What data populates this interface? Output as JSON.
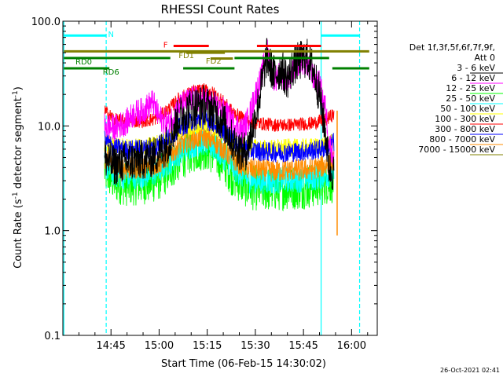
{
  "chart_data": {
    "type": "line",
    "title": "RHESSI Count Rates",
    "xlabel": "Start Time (06-Feb-15 14:30:02)",
    "ylabel_main": "Count Rate (s",
    "ylabel_sup1": "-1",
    "ylabel_mid": " detector segment",
    "ylabel_sup2": "-1",
    "ylabel_end": ")",
    "x_unit": "minutes since 14:30:02",
    "xlim": [
      0,
      98
    ],
    "ylim": [
      0.1,
      100
    ],
    "yscale": "log",
    "y_ticks": [
      {
        "value": 0.1,
        "label": "0.1"
      },
      {
        "value": 1.0,
        "label": "1.0"
      },
      {
        "value": 10.0,
        "label": "10.0"
      },
      {
        "value": 100.0,
        "label": "100.0"
      }
    ],
    "x_ticks": [
      {
        "value": 15,
        "label": "14:45"
      },
      {
        "value": 30,
        "label": "15:00"
      },
      {
        "value": 45,
        "label": "15:15"
      },
      {
        "value": 60,
        "label": "15:30"
      },
      {
        "value": 75,
        "label": "15:45"
      },
      {
        "value": 90,
        "label": "16:00"
      }
    ],
    "legend_header_1": "Det 1f,3f,5f,6f,7f,9f,",
    "legend_header_2": "Att 0",
    "series": [
      {
        "name": "3 - 6 keV",
        "color": "#000000",
        "x": [
          13,
          16,
          20,
          25,
          28,
          30,
          33,
          36,
          40,
          44,
          47,
          50,
          53,
          56,
          57.5,
          58.5,
          60,
          62,
          63.5,
          64.5,
          66,
          68,
          70,
          72,
          74,
          76,
          78,
          80,
          82,
          83,
          84.5
        ],
        "y": [
          5.0,
          4.2,
          4.5,
          4.8,
          5.0,
          5.5,
          7.0,
          12.0,
          15.0,
          16.0,
          14.0,
          11.0,
          7.0,
          5.5,
          6.0,
          8.0,
          12.0,
          25.0,
          45.0,
          38.0,
          30.0,
          35.0,
          28.0,
          38.0,
          42.0,
          45.0,
          35.0,
          20.0,
          8.0,
          4.0,
          3.5
        ]
      },
      {
        "name": "6 - 12 keV",
        "color": "#ff00ff",
        "x": [
          13,
          16,
          20,
          22,
          25,
          28,
          30,
          33,
          36,
          40,
          44,
          47,
          50,
          53,
          56,
          58,
          60,
          62,
          63.5,
          64.5,
          66,
          68,
          70,
          72,
          74,
          76,
          78,
          80,
          82,
          83,
          84.5
        ],
        "y": [
          10.0,
          9.5,
          11.0,
          13.0,
          14.0,
          17.0,
          12.0,
          10.5,
          15.0,
          18.0,
          18.0,
          16.0,
          14.0,
          11.0,
          9.0,
          12.0,
          20.0,
          30.0,
          55.0,
          40.0,
          28.0,
          32.0,
          25.0,
          36.0,
          42.0,
          40.0,
          30.0,
          25.0,
          14.0,
          7.0,
          5.0
        ]
      },
      {
        "name": "12 - 25 keV",
        "color": "#00ff00",
        "x": [
          13,
          16,
          20,
          25,
          28,
          30,
          33,
          36,
          40,
          44,
          47,
          50,
          53,
          56,
          58,
          62,
          66,
          70,
          74,
          78,
          82,
          84.5
        ],
        "y": [
          3.8,
          3.0,
          2.8,
          2.9,
          3.0,
          3.2,
          3.8,
          4.8,
          5.8,
          6.2,
          5.6,
          4.6,
          3.4,
          2.9,
          2.6,
          2.5,
          2.5,
          2.6,
          2.6,
          2.7,
          2.9,
          3.0
        ]
      },
      {
        "name": "25 - 50 keV",
        "color": "#00ffff",
        "x": [
          13,
          16,
          20,
          25,
          28,
          30,
          33,
          36,
          40,
          44,
          47,
          50,
          53,
          56,
          58,
          62,
          66,
          70,
          74,
          78,
          82,
          84.5
        ],
        "y": [
          4.2,
          3.5,
          3.3,
          3.4,
          3.5,
          3.8,
          4.5,
          5.5,
          6.6,
          7.0,
          6.3,
          5.2,
          4.0,
          3.4,
          3.1,
          3.0,
          3.0,
          3.1,
          3.1,
          3.2,
          3.4,
          3.6
        ]
      },
      {
        "name": "50 - 100 keV",
        "color": "#ffff00",
        "x": [
          13,
          16,
          20,
          25,
          28,
          30,
          33,
          36,
          40,
          44,
          47,
          50,
          53,
          56,
          58,
          62,
          66,
          70,
          74,
          78,
          82,
          84.5
        ],
        "y": [
          7.0,
          6.3,
          6.2,
          6.3,
          6.5,
          6.8,
          7.6,
          8.8,
          10.0,
          10.4,
          9.6,
          8.4,
          7.2,
          6.5,
          6.2,
          6.1,
          6.1,
          6.2,
          6.2,
          6.3,
          6.6,
          7.0
        ]
      },
      {
        "name": "100 - 300 keV",
        "color": "#ff0000",
        "x": [
          13,
          16,
          20,
          25,
          28,
          30,
          33,
          36,
          40,
          44,
          47,
          50,
          53,
          56,
          58,
          62,
          66,
          70,
          74,
          78,
          82,
          84.5
        ],
        "y": [
          14.0,
          11.5,
          11.0,
          11.2,
          11.5,
          12.2,
          14.5,
          18.0,
          21.0,
          22.0,
          20.5,
          17.0,
          13.5,
          11.8,
          11.0,
          10.5,
          10.2,
          10.2,
          10.4,
          10.6,
          11.5,
          13.0
        ]
      },
      {
        "name": "300 - 800 keV",
        "color": "#0000ff",
        "x": [
          13,
          16,
          20,
          25,
          28,
          30,
          33,
          36,
          40,
          44,
          47,
          50,
          53,
          56,
          58,
          62,
          66,
          70,
          74,
          78,
          82,
          84.5
        ],
        "y": [
          7.5,
          6.2,
          5.9,
          6.0,
          6.2,
          6.6,
          7.8,
          9.5,
          11.0,
          11.5,
          10.7,
          9.0,
          7.3,
          6.3,
          5.9,
          5.7,
          5.6,
          5.6,
          5.7,
          5.8,
          6.2,
          7.0
        ]
      },
      {
        "name": "800 - 7000 keV",
        "color": "#ff8c00",
        "x": [
          13,
          16,
          20,
          25,
          28,
          30,
          33,
          36,
          40,
          44,
          47,
          50,
          53,
          56,
          58,
          62,
          66,
          70,
          74,
          78,
          82,
          84.5
        ],
        "y": [
          5.0,
          4.1,
          3.9,
          4.0,
          4.1,
          4.4,
          5.2,
          6.4,
          7.5,
          7.9,
          7.2,
          6.0,
          4.8,
          4.2,
          3.9,
          3.8,
          3.7,
          3.8,
          3.8,
          3.9,
          4.2,
          4.6
        ]
      },
      {
        "name": "7000 - 15000 keV",
        "color": "#808000",
        "x": [],
        "y": []
      }
    ],
    "dashed_vlines": [
      {
        "x": 13.5,
        "color": "#00ffff"
      },
      {
        "x": 92.5,
        "color": "#00ffff"
      }
    ],
    "solid_vlines": [
      {
        "x": 0.3,
        "color": "#00ffff"
      },
      {
        "x": 80.5,
        "color": "#00ffff"
      }
    ],
    "spike": {
      "x": 85.5,
      "y_top": 14.0,
      "y_bottom": 0.9,
      "color": "#ff8c00"
    },
    "state_bars": [
      {
        "label": "N",
        "color": "#00ffff",
        "y": 73.0,
        "segments": [
          [
            0.3,
            13.5
          ],
          [
            80.5,
            92.5
          ]
        ],
        "label_x": 15.0,
        "label_y": 76.0
      },
      {
        "label": "F",
        "color": "#ff0000",
        "y": 58.0,
        "segments": [
          [
            34.5,
            45.5
          ],
          [
            60.5,
            80.5
          ]
        ],
        "label_x": 32.0,
        "label_y": 60.0
      },
      {
        "label": "FD1",
        "color": "#808000",
        "y": 50.0,
        "segments": [
          [
            38.5,
            50.5
          ]
        ],
        "label_x": 38.5,
        "label_y": 47.5
      },
      {
        "label": "FD2",
        "color": "#808000",
        "y": 44.0,
        "segments": [
          [
            46.0,
            53.0
          ]
        ],
        "label_x": 47.0,
        "label_y": 42.0
      },
      {
        "label": "",
        "color": "#808000",
        "y": 51.5,
        "segments": [
          [
            0.3,
            95.5
          ]
        ],
        "label_x": 0,
        "label_y": 0
      },
      {
        "label": "RD0",
        "color": "#008000",
        "y": 44.5,
        "segments": [
          [
            0.3,
            33.5
          ],
          [
            53.5,
            83.0
          ]
        ],
        "label_x": 6.5,
        "label_y": 41.5
      },
      {
        "label": "RD6",
        "color": "#008000",
        "y": 35.5,
        "segments": [
          [
            0.3,
            14.5
          ],
          [
            37.5,
            53.5
          ],
          [
            84.0,
            95.5
          ]
        ],
        "label_x": 15.0,
        "label_y": 33.0
      }
    ],
    "grid": false,
    "legend_position": "right"
  },
  "footer_timestamp": "26-Oct-2021 02:41"
}
